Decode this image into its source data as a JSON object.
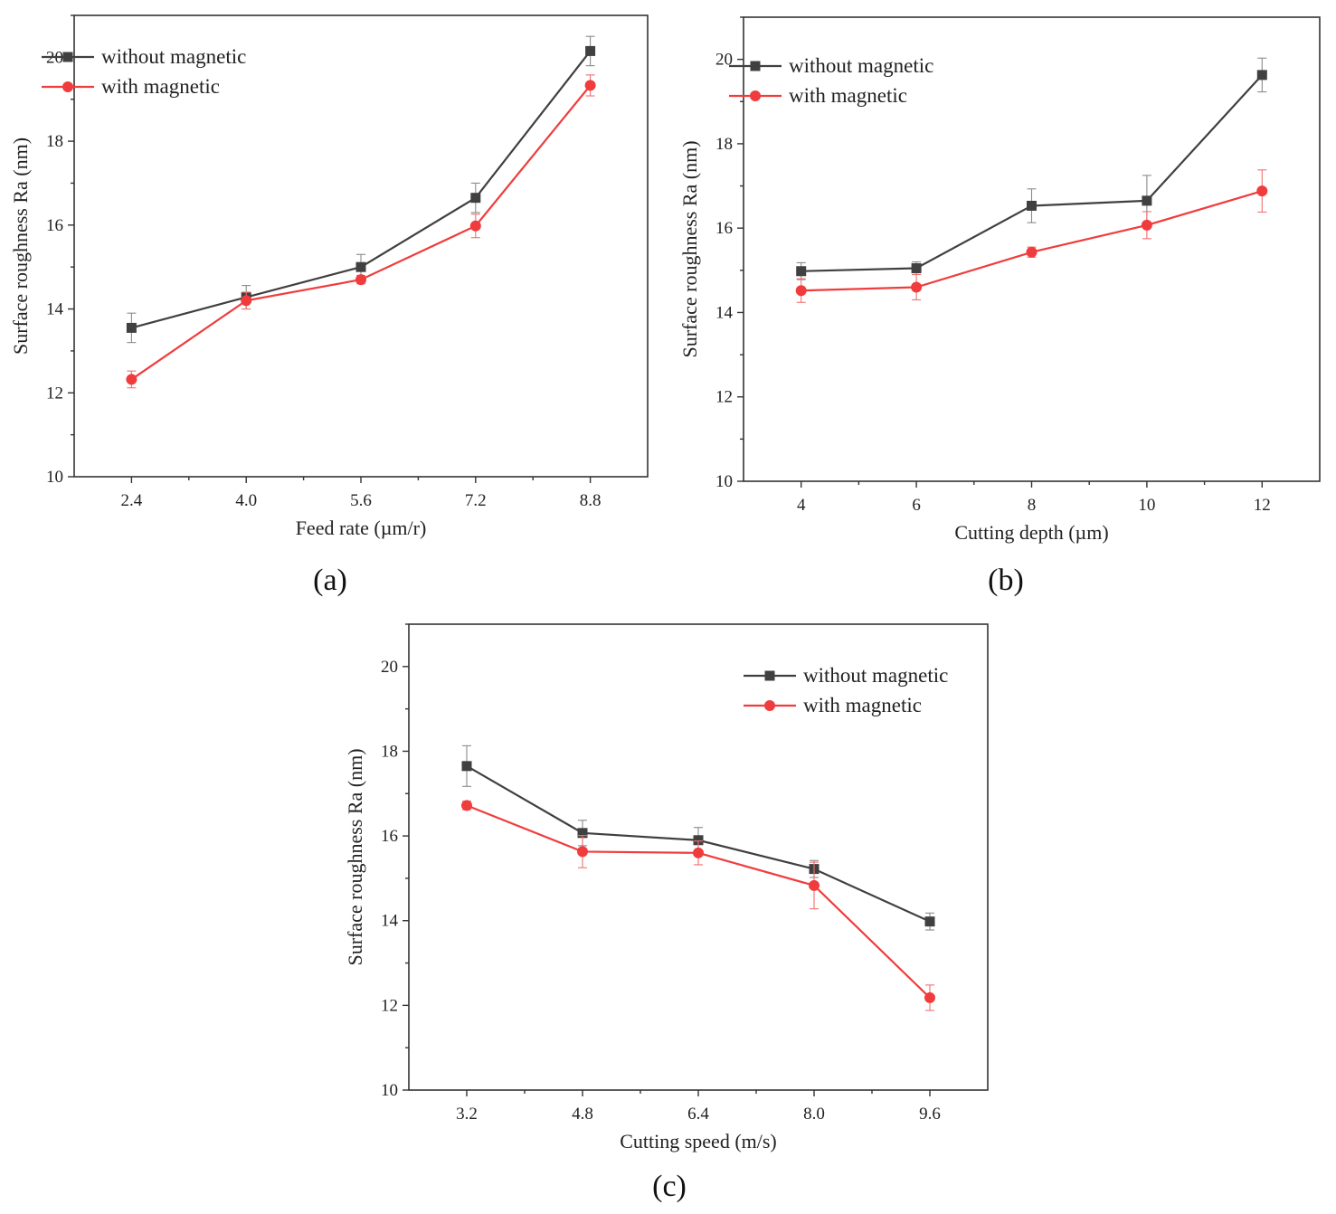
{
  "colors": {
    "without": "#404040",
    "with": "#f03c3c",
    "without_err": "#8a8a8a",
    "with_err": "#f07070"
  },
  "chart_data": [
    {
      "type": "line",
      "caption": "(a)",
      "xlabel": "Feed rate (µm/r)",
      "ylabel": "Surface roughness Ra (nm)",
      "x": [
        2.4,
        4.0,
        5.6,
        7.2,
        8.8
      ],
      "x_tick_labels": [
        "2.4",
        "4.0",
        "5.6",
        "7.2",
        "8.8"
      ],
      "xlim": [
        1.6,
        9.6
      ],
      "ylim": [
        10,
        21
      ],
      "y_ticks": [
        10,
        12,
        14,
        16,
        18,
        20
      ],
      "legend": "top-left",
      "series": [
        {
          "name": "without magnetic",
          "marker": "square",
          "values": [
            13.55,
            14.28,
            15.0,
            16.65,
            20.15
          ],
          "errors": [
            0.35,
            0.28,
            0.3,
            0.35,
            0.35
          ]
        },
        {
          "name": "with magnetic",
          "marker": "circle",
          "values": [
            12.32,
            14.2,
            14.7,
            15.98,
            19.33
          ],
          "errors": [
            0.2,
            0.2,
            0.1,
            0.28,
            0.25
          ]
        }
      ]
    },
    {
      "type": "line",
      "caption": "(b)",
      "xlabel": "Cutting depth (µm)",
      "ylabel": "Surface roughness Ra (nm)",
      "x": [
        4,
        6,
        8,
        10,
        12
      ],
      "x_tick_labels": [
        "4",
        "6",
        "8",
        "10",
        "12"
      ],
      "xlim": [
        3,
        13
      ],
      "ylim": [
        10,
        21
      ],
      "y_ticks": [
        10,
        12,
        14,
        16,
        18,
        20
      ],
      "legend": "top-left",
      "series": [
        {
          "name": "without magnetic",
          "marker": "square",
          "values": [
            14.98,
            15.05,
            16.53,
            16.65,
            19.63
          ],
          "errors": [
            0.2,
            0.15,
            0.4,
            0.6,
            0.4
          ]
        },
        {
          "name": "with magnetic",
          "marker": "circle",
          "values": [
            14.52,
            14.6,
            15.43,
            16.07,
            16.88
          ],
          "errors": [
            0.28,
            0.3,
            0.12,
            0.32,
            0.5
          ]
        }
      ]
    },
    {
      "type": "line",
      "caption": "(c)",
      "xlabel": "Cutting speed (m/s)",
      "ylabel": "Surface roughness Ra (nm)",
      "x": [
        3.2,
        4.8,
        6.4,
        8.0,
        9.6
      ],
      "x_tick_labels": [
        "3.2",
        "4.8",
        "6.4",
        "8.0",
        "9.6"
      ],
      "xlim": [
        2.4,
        10.4
      ],
      "ylim": [
        10,
        21
      ],
      "y_ticks": [
        10,
        12,
        14,
        16,
        18,
        20
      ],
      "legend": "top-right",
      "series": [
        {
          "name": "without magnetic",
          "marker": "square",
          "values": [
            17.65,
            16.07,
            15.9,
            15.22,
            13.98
          ],
          "errors": [
            0.48,
            0.3,
            0.3,
            0.2,
            0.2
          ]
        },
        {
          "name": "with magnetic",
          "marker": "circle",
          "values": [
            16.72,
            15.63,
            15.6,
            14.83,
            12.18
          ],
          "errors": [
            0.1,
            0.38,
            0.28,
            0.55,
            0.3
          ]
        }
      ]
    }
  ]
}
